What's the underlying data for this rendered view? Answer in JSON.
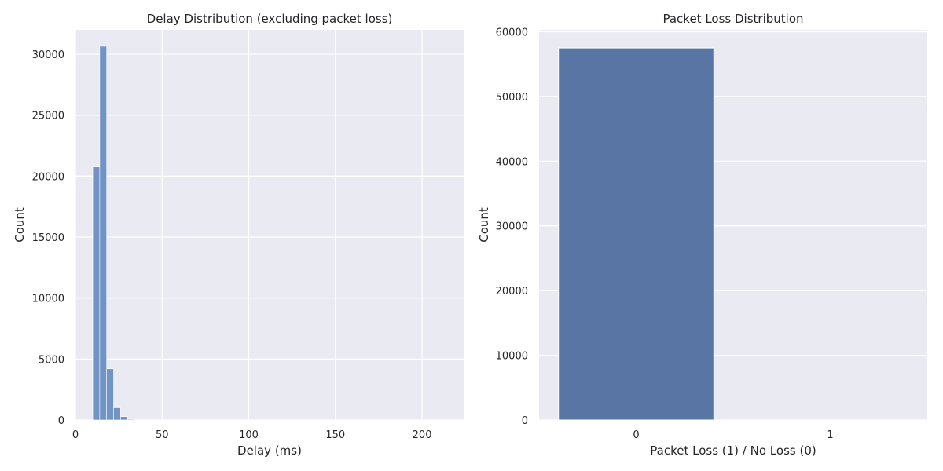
{
  "chart_data": [
    {
      "type": "bar",
      "title": "Delay Distribution (excluding packet loss)",
      "xlabel": "Delay (ms)",
      "ylabel": "Count",
      "xlim": [
        0,
        224
      ],
      "ylim": [
        0,
        32000
      ],
      "xticks": [
        0,
        50,
        100,
        150,
        200
      ],
      "yticks": [
        0,
        5000,
        10000,
        15000,
        20000,
        25000,
        30000
      ],
      "bin_width": 4,
      "bins": [
        {
          "x0": 10,
          "x1": 14,
          "count": 20750
        },
        {
          "x0": 14,
          "x1": 18,
          "count": 30650
        },
        {
          "x0": 18,
          "x1": 22,
          "count": 4200
        },
        {
          "x0": 22,
          "x1": 26,
          "count": 1000
        },
        {
          "x0": 26,
          "x1": 30,
          "count": 280
        },
        {
          "x0": 30,
          "x1": 34,
          "count": 60
        },
        {
          "x0": 34,
          "x1": 38,
          "count": 20
        }
      ],
      "color": "#7294c4",
      "grid": true,
      "background": "#eaeaf2"
    },
    {
      "type": "bar",
      "title": "Packet Loss Distribution",
      "xlabel": "Packet Loss (1) / No Loss (0)",
      "ylabel": "Count",
      "ylim": [
        0,
        60300
      ],
      "yticks": [
        0,
        10000,
        20000,
        30000,
        40000,
        50000,
        60000
      ],
      "categories": [
        "0",
        "1"
      ],
      "values": [
        57500,
        0
      ],
      "color": "#5975a4",
      "grid": true,
      "background": "#eaeaf2"
    }
  ]
}
